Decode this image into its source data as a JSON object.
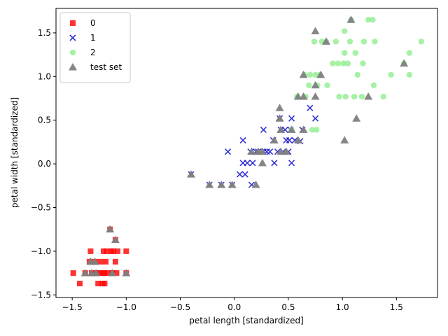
{
  "chart_data": {
    "type": "scatter",
    "xlabel": "petal length [standardized]",
    "ylabel": "petal width [standardized]",
    "xlim": [
      -1.65,
      1.88
    ],
    "ylim": [
      -1.53,
      1.78
    ],
    "xticks": [
      -1.5,
      -1.0,
      -0.5,
      0.0,
      0.5,
      1.0,
      1.5
    ],
    "yticks": [
      -1.5,
      -1.0,
      -0.5,
      0.0,
      0.5,
      1.0,
      1.5
    ],
    "xtick_labels": [
      "−1.5",
      "−1.0",
      "−0.5",
      "0.0",
      "0.5",
      "1.0",
      "1.5"
    ],
    "ytick_labels": [
      "−1.5",
      "−1.0",
      "−0.5",
      "0.0",
      "0.5",
      "1.0",
      "1.5"
    ],
    "grid": false,
    "legend_position": "top-left",
    "series": [
      {
        "name": "0",
        "marker": "square",
        "color": "#ff0000",
        "points": [
          [
            -1.49,
            -1.25
          ],
          [
            -1.43,
            -1.37
          ],
          [
            -1.38,
            -1.25
          ],
          [
            -1.34,
            -1.12
          ],
          [
            -1.33,
            -1.0
          ],
          [
            -1.32,
            -1.25
          ],
          [
            -1.29,
            -1.12
          ],
          [
            -1.28,
            -1.25
          ],
          [
            -1.26,
            -1.37
          ],
          [
            -1.25,
            -1.25
          ],
          [
            -1.24,
            -1.12
          ],
          [
            -1.22,
            -1.37
          ],
          [
            -1.22,
            -1.25
          ],
          [
            -1.21,
            -1.0
          ],
          [
            -1.2,
            -1.25
          ],
          [
            -1.2,
            -1.37
          ],
          [
            -1.19,
            -1.12
          ],
          [
            -1.18,
            -1.0
          ],
          [
            -1.17,
            -1.25
          ],
          [
            -1.15,
            -0.75
          ],
          [
            -1.14,
            -1.0
          ],
          [
            -1.13,
            -1.25
          ],
          [
            -1.12,
            -1.0
          ],
          [
            -1.1,
            -0.87
          ],
          [
            -1.1,
            -1.12
          ],
          [
            -1.09,
            -1.25
          ],
          [
            -1.08,
            -1.0
          ],
          [
            -1.0,
            -1.0
          ],
          [
            -1.0,
            -1.25
          ]
        ]
      },
      {
        "name": "1",
        "marker": "x",
        "color": "#0000cc",
        "points": [
          [
            -0.4,
            -0.12
          ],
          [
            -0.23,
            -0.24
          ],
          [
            -0.12,
            -0.24
          ],
          [
            -0.06,
            0.14
          ],
          [
            -0.02,
            -0.24
          ],
          [
            0.05,
            -0.12
          ],
          [
            0.08,
            0.27
          ],
          [
            0.08,
            0.01
          ],
          [
            0.1,
            -0.12
          ],
          [
            0.12,
            0.01
          ],
          [
            0.15,
            0.14
          ],
          [
            0.16,
            -0.24
          ],
          [
            0.17,
            0.01
          ],
          [
            0.2,
            0.14
          ],
          [
            0.22,
            0.14
          ],
          [
            0.27,
            0.14
          ],
          [
            0.27,
            0.39
          ],
          [
            0.3,
            0.14
          ],
          [
            0.33,
            0.14
          ],
          [
            0.36,
            0.27
          ],
          [
            0.37,
            0.01
          ],
          [
            0.4,
            0.14
          ],
          [
            0.42,
            0.52
          ],
          [
            0.43,
            0.39
          ],
          [
            0.45,
            0.14
          ],
          [
            0.47,
            0.39
          ],
          [
            0.48,
            0.27
          ],
          [
            0.5,
            0.14
          ],
          [
            0.51,
            0.27
          ],
          [
            0.52,
            0.39
          ],
          [
            0.53,
            0.52
          ],
          [
            0.53,
            0.01
          ],
          [
            0.56,
            0.27
          ],
          [
            0.61,
            0.26
          ],
          [
            0.63,
            0.39
          ],
          [
            0.7,
            0.64
          ],
          [
            0.75,
            0.52
          ]
        ]
      },
      {
        "name": "2",
        "marker": "circle",
        "color": "#90ee90",
        "points": [
          [
            0.53,
            0.39
          ],
          [
            0.58,
            0.77
          ],
          [
            0.65,
            1.02
          ],
          [
            0.66,
            0.77
          ],
          [
            0.69,
            0.9
          ],
          [
            0.7,
            1.02
          ],
          [
            0.72,
            0.39
          ],
          [
            0.74,
            1.4
          ],
          [
            0.75,
            1.02
          ],
          [
            0.76,
            0.39
          ],
          [
            0.77,
            0.9
          ],
          [
            0.79,
            1.02
          ],
          [
            0.81,
            1.4
          ],
          [
            0.85,
            1.4
          ],
          [
            0.86,
            0.9
          ],
          [
            0.91,
            1.15
          ],
          [
            0.94,
            1.4
          ],
          [
            0.96,
            1.15
          ],
          [
            0.97,
            0.77
          ],
          [
            1.01,
            1.15
          ],
          [
            1.02,
            1.27
          ],
          [
            1.02,
            1.52
          ],
          [
            1.03,
            0.77
          ],
          [
            1.05,
            1.15
          ],
          [
            1.07,
            1.4
          ],
          [
            1.08,
            1.65
          ],
          [
            1.11,
            0.77
          ],
          [
            1.12,
            1.27
          ],
          [
            1.14,
            1.02
          ],
          [
            1.18,
            0.77
          ],
          [
            1.19,
            1.15
          ],
          [
            1.2,
            1.4
          ],
          [
            1.24,
            1.65
          ],
          [
            1.28,
            1.65
          ],
          [
            1.29,
            0.9
          ],
          [
            1.3,
            1.4
          ],
          [
            1.38,
            0.77
          ],
          [
            1.45,
            1.02
          ],
          [
            1.57,
            1.15
          ],
          [
            1.62,
            1.27
          ],
          [
            1.62,
            1.02
          ],
          [
            1.73,
            1.4
          ]
        ]
      },
      {
        "name": "test set",
        "marker": "triangle",
        "color": "#808080",
        "points": [
          [
            -1.38,
            -1.25
          ],
          [
            -1.33,
            -1.12
          ],
          [
            -1.32,
            -1.25
          ],
          [
            -1.29,
            -1.12
          ],
          [
            -1.28,
            -1.25
          ],
          [
            -1.15,
            -0.75
          ],
          [
            -1.13,
            -1.25
          ],
          [
            -1.1,
            -0.87
          ],
          [
            -1.0,
            -1.25
          ],
          [
            -0.4,
            -0.12
          ],
          [
            -0.23,
            -0.24
          ],
          [
            -0.12,
            -0.24
          ],
          [
            -0.02,
            -0.24
          ],
          [
            0.16,
            0.14
          ],
          [
            0.2,
            -0.24
          ],
          [
            0.22,
            0.14
          ],
          [
            0.26,
            0.14
          ],
          [
            0.26,
            0.01
          ],
          [
            0.37,
            0.27
          ],
          [
            0.42,
            0.64
          ],
          [
            0.42,
            0.52
          ],
          [
            0.43,
            0.39
          ],
          [
            0.43,
            0.14
          ],
          [
            0.48,
            0.14
          ],
          [
            0.53,
            0.39
          ],
          [
            0.59,
            0.77
          ],
          [
            0.59,
            0.27
          ],
          [
            0.64,
            0.39
          ],
          [
            0.64,
            0.77
          ],
          [
            0.64,
            1.02
          ],
          [
            0.75,
            0.77
          ],
          [
            0.75,
            0.9
          ],
          [
            0.75,
            1.52
          ],
          [
            0.8,
            1.02
          ],
          [
            0.85,
            1.4
          ],
          [
            1.02,
            0.27
          ],
          [
            1.08,
            1.65
          ],
          [
            1.13,
            0.52
          ],
          [
            1.24,
            0.77
          ],
          [
            1.57,
            1.15
          ]
        ]
      }
    ]
  }
}
